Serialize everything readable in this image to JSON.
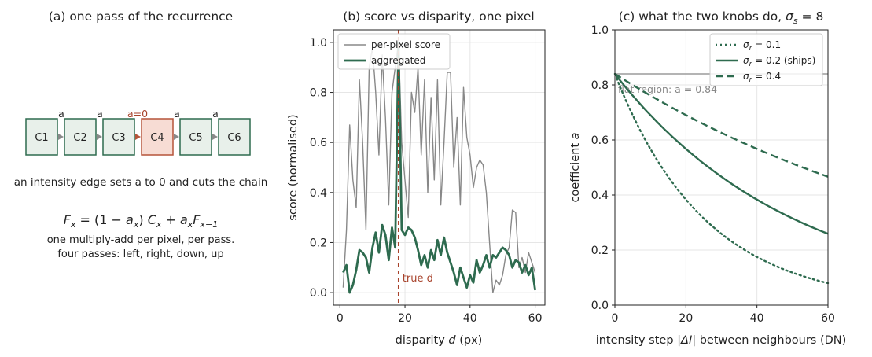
{
  "panel_a": {
    "title": "(a) one pass of the recurrence",
    "cells": [
      "C1",
      "C2",
      "C3",
      "C4",
      "C5",
      "C6"
    ],
    "link_labels": [
      "a",
      "a",
      "a=0",
      "a",
      "a"
    ],
    "edge_caption": "an intensity edge sets a to 0 and cuts the chain",
    "formula": "F_x = (1 − a_x) C_x + a_x F_{x−1}",
    "formula_parts": {
      "F": "F",
      "x": "x",
      "eq": " = (1 − ",
      "a": "a",
      "mid": ") ",
      "C": "C",
      "plus": " + ",
      "F2": "F",
      "xm1": "x−1"
    },
    "note_line1": "one multiply-add per pixel, per pass.",
    "note_line2": "four passes: left, right, down, up",
    "colors": {
      "cell_fill": "#e8f0ea",
      "cell_stroke": "#2e6b4f",
      "edge_fill": "#f7dcd4",
      "edge_stroke": "#b5543a",
      "edge_text": "#a8432c",
      "arrow": "#8a8a8a"
    }
  },
  "chart_data": [
    {
      "type": "line",
      "title": "(b) score vs disparity, one pixel",
      "xlabel": "disparity d (px)",
      "ylabel": "score (normalised)",
      "xlim": [
        -2,
        63
      ],
      "ylim": [
        -0.05,
        1.05
      ],
      "xticks": [
        0,
        20,
        40,
        60
      ],
      "yticks": [
        0.0,
        0.2,
        0.4,
        0.6,
        0.8,
        1.0
      ],
      "grid": true,
      "legend_position": "top-left",
      "annotation": {
        "label": "true d",
        "x": 18
      },
      "series": [
        {
          "name": "per-pixel score",
          "color": "#888888",
          "x": [
            1,
            2,
            3,
            4,
            5,
            6,
            7,
            8,
            9,
            10,
            11,
            12,
            13,
            14,
            15,
            16,
            17,
            18,
            19,
            20,
            21,
            22,
            23,
            24,
            25,
            26,
            27,
            28,
            29,
            30,
            31,
            32,
            33,
            34,
            35,
            36,
            37,
            38,
            39,
            40,
            41,
            42,
            43,
            44,
            45,
            46,
            47,
            48,
            49,
            50,
            51,
            52,
            53,
            54,
            55,
            56,
            57,
            58,
            59,
            60
          ],
          "y": [
            0.02,
            0.25,
            0.67,
            0.45,
            0.34,
            0.85,
            0.6,
            0.25,
            0.9,
            0.98,
            0.8,
            0.55,
            0.95,
            0.7,
            0.35,
            0.8,
            0.9,
            1.0,
            0.6,
            0.45,
            0.3,
            0.8,
            0.72,
            0.9,
            0.55,
            0.85,
            0.4,
            0.78,
            0.45,
            0.85,
            0.35,
            0.6,
            0.88,
            0.88,
            0.5,
            0.7,
            0.35,
            0.82,
            0.62,
            0.55,
            0.42,
            0.5,
            0.53,
            0.51,
            0.4,
            0.2,
            0.0,
            0.05,
            0.03,
            0.07,
            0.15,
            0.18,
            0.33,
            0.32,
            0.1,
            0.14,
            0.08,
            0.16,
            0.12,
            0.08
          ]
        },
        {
          "name": "aggregated",
          "color": "#2e6b4f",
          "x": [
            1,
            2,
            3,
            4,
            5,
            6,
            7,
            8,
            9,
            10,
            11,
            12,
            13,
            14,
            15,
            16,
            17,
            18,
            19,
            20,
            21,
            22,
            23,
            24,
            25,
            26,
            27,
            28,
            29,
            30,
            31,
            32,
            33,
            34,
            35,
            36,
            37,
            38,
            39,
            40,
            41,
            42,
            43,
            44,
            45,
            46,
            47,
            48,
            49,
            50,
            51,
            52,
            53,
            54,
            55,
            56,
            57,
            58,
            59,
            60
          ],
          "y": [
            0.08,
            0.11,
            0.0,
            0.03,
            0.09,
            0.17,
            0.16,
            0.14,
            0.08,
            0.18,
            0.24,
            0.16,
            0.27,
            0.23,
            0.13,
            0.26,
            0.18,
            1.0,
            0.25,
            0.23,
            0.26,
            0.25,
            0.22,
            0.17,
            0.11,
            0.15,
            0.1,
            0.17,
            0.13,
            0.21,
            0.15,
            0.22,
            0.16,
            0.12,
            0.08,
            0.03,
            0.1,
            0.06,
            0.02,
            0.07,
            0.04,
            0.13,
            0.08,
            0.11,
            0.15,
            0.1,
            0.15,
            0.14,
            0.16,
            0.18,
            0.17,
            0.15,
            0.1,
            0.13,
            0.12,
            0.08,
            0.11,
            0.07,
            0.1,
            0.01
          ]
        }
      ]
    },
    {
      "type": "line",
      "title_prefix": "(c) what the two knobs do, ",
      "title_sym": "σ",
      "title_sub": "s",
      "title_suffix": " = 8",
      "xlabel": "intensity step |ΔI| between neighbours (DN)",
      "ylabel": "coefficient a",
      "xlim": [
        0,
        60
      ],
      "ylim": [
        0.0,
        1.0
      ],
      "xticks": [
        0,
        20,
        40,
        60
      ],
      "yticks": [
        0.0,
        0.2,
        0.4,
        0.6,
        0.8,
        1.0
      ],
      "grid": true,
      "legend_position": "top-right",
      "flat_region": {
        "value": 0.84,
        "label": "flat region: a = 0.84",
        "color": "#888888"
      },
      "a0": 0.84,
      "series": [
        {
          "name": "σr = 0.1",
          "legend_sub": "r",
          "legend_rest": " = 0.1",
          "style": "dotted",
          "sigma_r": 0.1,
          "color": "#2e6b4f"
        },
        {
          "name": "σr = 0.2 (ships)",
          "legend_sub": "r",
          "legend_rest": " = 0.2 (ships)",
          "style": "solid",
          "sigma_r": 0.2,
          "color": "#2e6b4f"
        },
        {
          "name": "σr = 0.4",
          "legend_sub": "r",
          "legend_rest": " = 0.4",
          "style": "dashed",
          "sigma_r": 0.4,
          "color": "#2e6b4f"
        }
      ]
    }
  ]
}
